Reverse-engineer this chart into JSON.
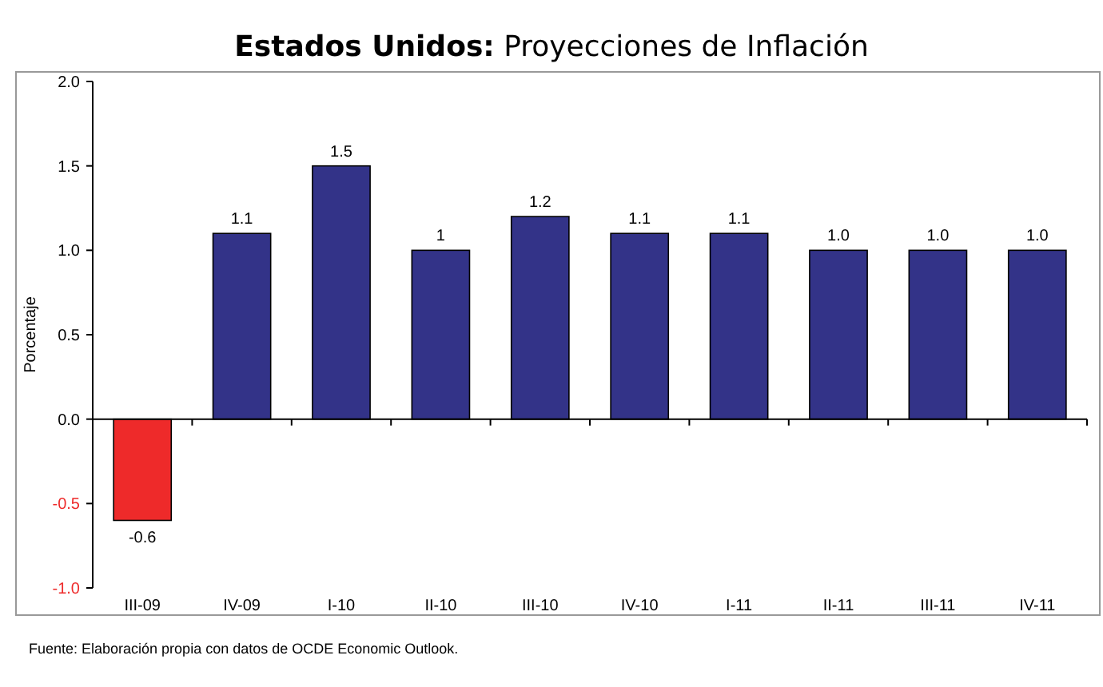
{
  "chart_data": {
    "type": "bar",
    "title": "Estados Unidos: Proyecciones de Inflación",
    "ylabel": "Porcentaje",
    "categories": [
      "III-09",
      "IV-09",
      "I-10",
      "II-10",
      "III-10",
      "IV-10",
      "I-11",
      "II-11",
      "III-11",
      "IV-11"
    ],
    "values": [
      -0.6,
      1.1,
      1.5,
      1,
      1.2,
      1.1,
      1.1,
      1,
      1,
      1
    ],
    "colors": [
      "#ee2a2a",
      "#333388",
      "#333388",
      "#333388",
      "#333388",
      "#333388",
      "#333388",
      "#333388",
      "#333388",
      "#333388"
    ],
    "value_labels": [
      "-0.6",
      "1.1",
      "1.5",
      "1",
      "1.2",
      "1.1",
      "1.1",
      "1.0",
      "1.0",
      "1.0"
    ],
    "ylim": [
      -1,
      2
    ],
    "yticks": [
      {
        "value": -1,
        "label": "-1.0"
      },
      {
        "value": -0.5,
        "label": "-0.5"
      },
      {
        "value": 0,
        "label": "0.0"
      },
      {
        "value": 0.5,
        "label": "0.5"
      },
      {
        "value": 1,
        "label": "1.0"
      },
      {
        "value": 1.5,
        "label": "1.5"
      },
      {
        "value": 2,
        "label": "2.0"
      }
    ],
    "annotations": [
      "Fuente: Elaboración propia con datos de OCDE Economic Outlook."
    ]
  }
}
